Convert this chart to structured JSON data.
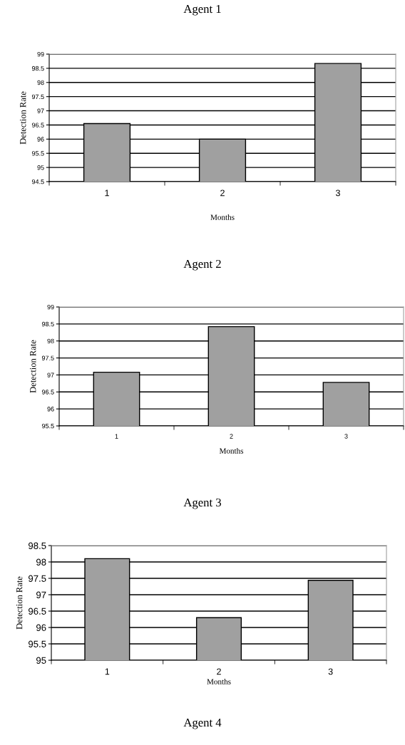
{
  "chart_data": [
    {
      "type": "bar",
      "title": "Agent 1",
      "xlabel": "Months",
      "ylabel": "Detection Rate",
      "categories": [
        "1",
        "2",
        "3"
      ],
      "values": [
        96.55,
        96.0,
        98.67
      ],
      "color": "#a0a0a0",
      "ylim": [
        94.5,
        99
      ],
      "yticks": [
        94.5,
        95,
        95.5,
        96,
        96.5,
        97,
        97.5,
        98,
        98.5,
        99
      ],
      "grid": "y"
    },
    {
      "type": "bar",
      "title": "Agent 2",
      "xlabel": "Months",
      "ylabel": "Detection Rate",
      "categories": [
        "1",
        "2",
        "3"
      ],
      "values": [
        97.08,
        98.42,
        96.78
      ],
      "color": "#a0a0a0",
      "ylim": [
        95.5,
        99
      ],
      "yticks": [
        95.5,
        96,
        96.5,
        97,
        97.5,
        98,
        98.5,
        99
      ],
      "grid": "y"
    },
    {
      "type": "bar",
      "title": "Agent 3",
      "xlabel": "Months",
      "ylabel": "Detection Rate",
      "categories": [
        "1",
        "2",
        "3"
      ],
      "values": [
        98.1,
        96.3,
        97.44
      ],
      "color": "#a0a0a0",
      "ylim": [
        95,
        98.5
      ],
      "yticks": [
        95,
        95.5,
        96,
        96.5,
        97,
        97.5,
        98,
        98.5
      ],
      "grid": "y"
    },
    {
      "type": "other",
      "title": "Agent 4"
    }
  ]
}
